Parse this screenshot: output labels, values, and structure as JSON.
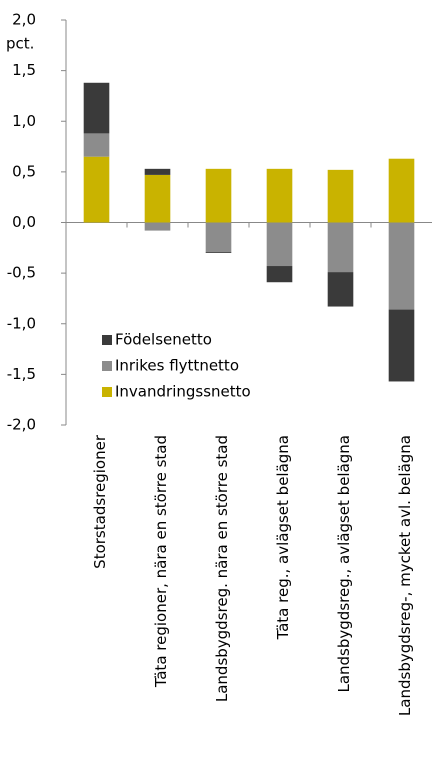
{
  "chart_data": {
    "type": "stacked_bar",
    "y_unit_label": "pct.",
    "categories": [
      "Storstadsregioner",
      "Täta regioner, nära en större stad",
      "Landsbygdsreg. nära en större stad",
      "Täta reg., avlägset belägna",
      "Landsbygdsreg., avlägset belägna",
      "Landsbygdsreg-, mycket avl. belägna"
    ],
    "series": [
      {
        "name": "Invandringssnetto",
        "color": "#c9b300",
        "values": [
          0.65,
          0.47,
          0.53,
          0.53,
          0.52,
          0.63
        ]
      },
      {
        "name": "Inrikes flyttnetto",
        "color": "#8c8c8c",
        "values": [
          0.23,
          -0.08,
          -0.29,
          -0.43,
          -0.49,
          -0.86
        ]
      },
      {
        "name": "Födelsenetto",
        "color": "#3a3a3a",
        "values": [
          0.5,
          0.06,
          -0.01,
          -0.16,
          -0.34,
          -0.71
        ]
      }
    ],
    "ylim": [
      -2,
      2
    ],
    "yticks": [
      {
        "value": -2,
        "label": "-2,0"
      },
      {
        "value": -1.5,
        "label": "-1,5"
      },
      {
        "value": -1,
        "label": "-1,0"
      },
      {
        "value": -0.5,
        "label": "-0,5"
      },
      {
        "value": 0,
        "label": "0,0"
      },
      {
        "value": 0.5,
        "label": "0,5"
      },
      {
        "value": 1,
        "label": "1,0"
      },
      {
        "value": 1.5,
        "label": "1,5"
      },
      {
        "value": 2,
        "label": "2,0"
      }
    ],
    "legend": "lower left"
  }
}
